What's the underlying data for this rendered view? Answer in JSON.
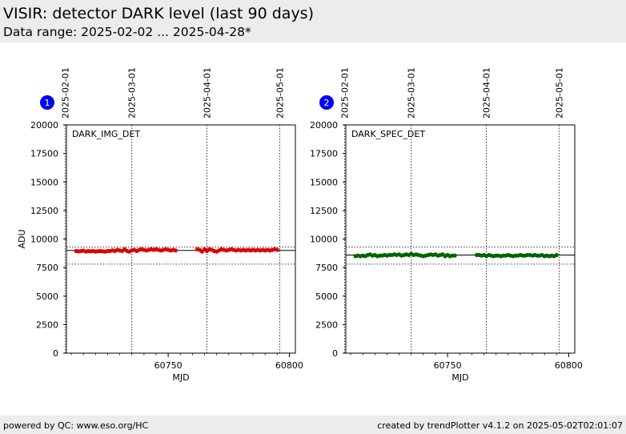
{
  "header": {
    "title": "VISIR: detector DARK level (last 90 days)",
    "subtitle": "Data range: 2025-02-02 ... 2025-04-28*"
  },
  "footer": {
    "left": "powered by QC: www.eso.org/HC",
    "right": "created by trendPlotter v4.1.2 on 2025-05-02T02:01:07"
  },
  "chart_data": [
    {
      "type": "scatter",
      "badge": "1",
      "label": "DARK_IMG_DET",
      "xlabel": "MJD",
      "ylabel": "ADU",
      "xlim": [
        60708,
        60802.5
      ],
      "ylim": [
        0,
        20000
      ],
      "xticks": [
        60750,
        60800
      ],
      "yticks": [
        0,
        2500,
        5000,
        7500,
        10000,
        12500,
        15000,
        17500,
        20000
      ],
      "date_ticks": [
        {
          "label": "2025-02-01",
          "mjd": 60707.5
        },
        {
          "label": "2025-03-01",
          "mjd": 60735
        },
        {
          "label": "2025-04-01",
          "mjd": 60766
        },
        {
          "label": "2025-05-01",
          "mjd": 60796
        }
      ],
      "ref_line": 9000,
      "ref_band": [
        7800,
        9300
      ],
      "color": "#dd0000",
      "series": [
        {
          "x": [
            60712,
            60713,
            60714,
            60715,
            60716,
            60717,
            60718,
            60719,
            60720,
            60721,
            60722,
            60723,
            60724,
            60725,
            60726,
            60727,
            60728,
            60729,
            60730,
            60731,
            60732,
            60733,
            60734,
            60735,
            60736,
            60737,
            60738,
            60739,
            60740,
            60741,
            60742,
            60743,
            60744,
            60745,
            60746,
            60747,
            60748,
            60749,
            60750,
            60751,
            60752,
            60753,
            60762,
            60763,
            60764,
            60765,
            60766,
            60767,
            60768,
            60769,
            60770,
            60771,
            60772,
            60773,
            60774,
            60775,
            60776,
            60777,
            60778,
            60779,
            60780,
            60781,
            60782,
            60783,
            60784,
            60785,
            60786,
            60787,
            60788,
            60789,
            60790,
            60791,
            60792,
            60793,
            60794,
            60795
          ],
          "y": [
            8950,
            8920,
            8950,
            8980,
            8900,
            8950,
            8920,
            8950,
            8900,
            8930,
            8950,
            8920,
            8900,
            8950,
            8950,
            9000,
            8950,
            9050,
            9000,
            8950,
            9100,
            8950,
            8900,
            9000,
            9050,
            8950,
            9050,
            9100,
            9050,
            9000,
            9050,
            9100,
            9050,
            9100,
            9050,
            9000,
            9050,
            9100,
            9050,
            9000,
            9050,
            9000,
            9100,
            9050,
            8900,
            9100,
            8950,
            9100,
            9050,
            8950,
            8900,
            9000,
            9100,
            9050,
            9000,
            9050,
            9100,
            9050,
            9000,
            9050,
            9000,
            9050,
            9000,
            9050,
            9000,
            9050,
            9000,
            9050,
            9000,
            9050,
            9000,
            9050,
            9000,
            9050,
            9100,
            9050
          ]
        }
      ]
    },
    {
      "type": "scatter",
      "badge": "2",
      "label": "DARK_SPEC_DET",
      "xlabel": "MJD",
      "ylabel": "",
      "xlim": [
        60708,
        60802.5
      ],
      "ylim": [
        0,
        20000
      ],
      "xticks": [
        60750,
        60800
      ],
      "yticks": [
        0,
        2500,
        5000,
        7500,
        10000,
        12500,
        15000,
        17500,
        20000
      ],
      "date_ticks": [
        {
          "label": "2025-02-01",
          "mjd": 60707.5
        },
        {
          "label": "2025-03-01",
          "mjd": 60735
        },
        {
          "label": "2025-04-01",
          "mjd": 60766
        },
        {
          "label": "2025-05-01",
          "mjd": 60796
        }
      ],
      "ref_line": 8600,
      "ref_band": [
        7800,
        9300
      ],
      "color": "#006400",
      "series": [
        {
          "x": [
            60712,
            60713,
            60714,
            60715,
            60716,
            60717,
            60718,
            60719,
            60720,
            60721,
            60722,
            60723,
            60724,
            60725,
            60726,
            60727,
            60728,
            60729,
            60730,
            60731,
            60732,
            60733,
            60734,
            60735,
            60736,
            60737,
            60738,
            60739,
            60740,
            60741,
            60742,
            60743,
            60744,
            60745,
            60746,
            60747,
            60748,
            60749,
            60750,
            60751,
            60752,
            60753,
            60762,
            60763,
            60764,
            60765,
            60766,
            60767,
            60768,
            60769,
            60770,
            60771,
            60772,
            60773,
            60774,
            60775,
            60776,
            60777,
            60778,
            60779,
            60780,
            60781,
            60782,
            60783,
            60784,
            60785,
            60786,
            60787,
            60788,
            60789,
            60790,
            60791,
            60792,
            60793,
            60794,
            60795
          ],
          "y": [
            8500,
            8550,
            8500,
            8550,
            8500,
            8600,
            8650,
            8550,
            8600,
            8500,
            8550,
            8550,
            8600,
            8550,
            8600,
            8600,
            8650,
            8600,
            8650,
            8550,
            8600,
            8650,
            8600,
            8700,
            8600,
            8650,
            8600,
            8550,
            8500,
            8550,
            8600,
            8650,
            8600,
            8650,
            8550,
            8600,
            8650,
            8500,
            8600,
            8500,
            8550,
            8550,
            8600,
            8600,
            8550,
            8600,
            8500,
            8600,
            8550,
            8500,
            8550,
            8550,
            8500,
            8550,
            8550,
            8600,
            8550,
            8500,
            8550,
            8550,
            8600,
            8550,
            8550,
            8600,
            8600,
            8550,
            8600,
            8550,
            8550,
            8600,
            8500,
            8550,
            8500,
            8550,
            8500,
            8600
          ]
        }
      ]
    }
  ]
}
